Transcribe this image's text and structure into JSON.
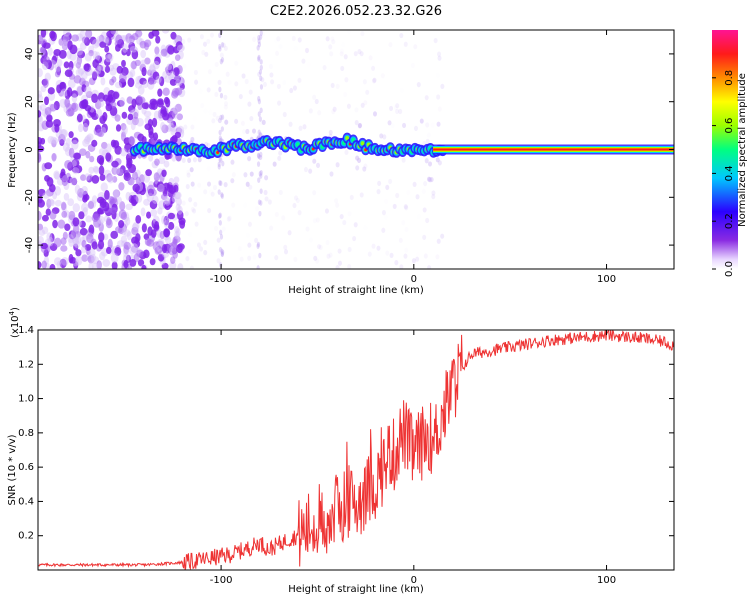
{
  "title": "C2E2.2026.052.23.32.G26",
  "colorbar": {
    "label": "Normalized spectral amplitude",
    "ticks": [
      "0.0",
      "0.2",
      "0.4",
      "0.6",
      "0.8"
    ],
    "tick_values": [
      0.0,
      0.2,
      0.4,
      0.6,
      0.8
    ],
    "range": [
      0,
      1
    ],
    "colors": [
      "#ffffff",
      "#e8d6ff",
      "#8a2be2",
      "#2b00ff",
      "#00c8ff",
      "#00ff80",
      "#9cff00",
      "#ffff00",
      "#ff8c00",
      "#ff1a1a",
      "#ff1493"
    ]
  },
  "chart_data": [
    {
      "type": "heatmap",
      "xlabel": "Height of straight line (km)",
      "ylabel": "Frequency (Hz)",
      "xlim": [
        -195,
        135
      ],
      "ylim": [
        -50,
        50
      ],
      "xticks": [
        -100,
        0,
        100
      ],
      "xtick_labels": [
        "-100",
        "0",
        "100"
      ],
      "yticks": [
        -40,
        -20,
        0,
        20,
        40
      ],
      "ytick_labels": [
        "-40",
        "-20",
        "0",
        "20",
        "40"
      ],
      "ridge": {
        "x": [
          -145,
          -135,
          -125,
          -115,
          -105,
          -95,
          -85,
          -75,
          -65,
          -55,
          -45,
          -35,
          -25,
          -15,
          -5,
          5,
          15,
          135
        ],
        "y": [
          0,
          0,
          0,
          0,
          -1,
          1,
          2,
          3,
          2,
          0,
          3,
          4,
          1,
          0,
          0,
          0,
          0,
          0
        ]
      }
    },
    {
      "type": "line",
      "xlabel": "Height of straight line (km)",
      "ylabel": "SNR (10 * v/v)",
      "multiplier_label": "(x10",
      "multiplier_exp": "4",
      "multiplier_close": ")",
      "xlim": [
        -195,
        135
      ],
      "ylim": [
        0,
        1.4
      ],
      "xticks": [
        -100,
        0,
        100
      ],
      "xtick_labels": [
        "-100",
        "0",
        "100"
      ],
      "yticks": [
        0.2,
        0.4,
        0.6,
        0.8,
        1.0,
        1.2,
        1.4
      ],
      "ytick_labels": [
        "0.2",
        "0.4",
        "0.6",
        "0.8",
        "1.0",
        "1.2",
        "1.4"
      ],
      "color": "#ee3333",
      "series": [
        {
          "x": [
            -195,
            -180,
            -160,
            -140,
            -125,
            -115,
            -105,
            -95,
            -85,
            -80,
            -75,
            -70,
            -65,
            -60,
            -55,
            -50,
            -45,
            -40,
            -35,
            -30,
            -25,
            -20,
            -15,
            -12,
            -10,
            -8,
            -5,
            -2,
            0,
            5,
            8,
            10,
            12,
            15,
            18,
            20,
            25,
            30,
            40,
            50,
            60,
            70,
            80,
            90,
            100,
            110,
            120,
            130,
            135
          ],
          "y": [
            0.03,
            0.03,
            0.03,
            0.03,
            0.04,
            0.05,
            0.07,
            0.09,
            0.13,
            0.16,
            0.12,
            0.15,
            0.18,
            0.2,
            0.24,
            0.3,
            0.28,
            0.35,
            0.4,
            0.38,
            0.45,
            0.5,
            0.62,
            0.7,
            0.66,
            0.75,
            0.8,
            0.72,
            0.68,
            0.75,
            0.8,
            0.7,
            0.82,
            0.9,
            1.0,
            1.06,
            1.18,
            1.26,
            1.28,
            1.3,
            1.32,
            1.34,
            1.35,
            1.36,
            1.37,
            1.36,
            1.35,
            1.33,
            1.31
          ]
        }
      ]
    }
  ]
}
